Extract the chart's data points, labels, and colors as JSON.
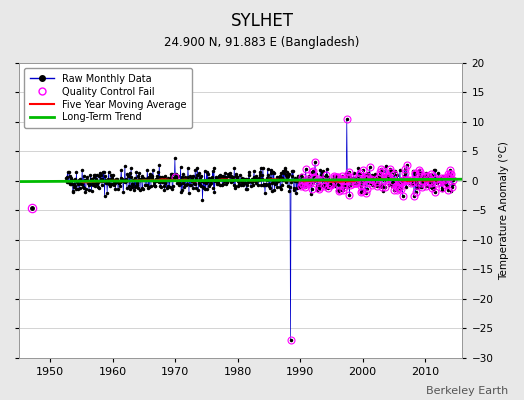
{
  "title": "SYLHET",
  "subtitle": "24.900 N, 91.883 E (Bangladesh)",
  "ylabel": "Temperature Anomaly (°C)",
  "watermark": "Berkeley Earth",
  "xlim": [
    1945,
    2016
  ],
  "ylim": [
    -30,
    20
  ],
  "yticks": [
    -30,
    -25,
    -20,
    -15,
    -10,
    -5,
    0,
    5,
    10,
    15,
    20
  ],
  "xticks": [
    1950,
    1960,
    1970,
    1980,
    1990,
    2000,
    2010
  ],
  "bg_color": "#e8e8e8",
  "plot_bg_color": "#ffffff",
  "grid_color": "#cccccc",
  "raw_line_color": "#0000cc",
  "raw_marker_color": "#000000",
  "qc_color": "#ff00ff",
  "moving_avg_color": "#ff0000",
  "trend_color": "#00bb00",
  "seed": 42,
  "start_year": 1952.5,
  "end_year": 2014.5,
  "spike1_year": 1988.5,
  "spike1_value": -27.0,
  "spike2_year": 1997.5,
  "spike2_value": 10.5,
  "outlier1_year": 1947.0,
  "outlier1_value": -4.5,
  "data_std": 1.0,
  "qc_start_year": 1990,
  "qc_density_early": 0.0,
  "qc_density_late": 0.55
}
